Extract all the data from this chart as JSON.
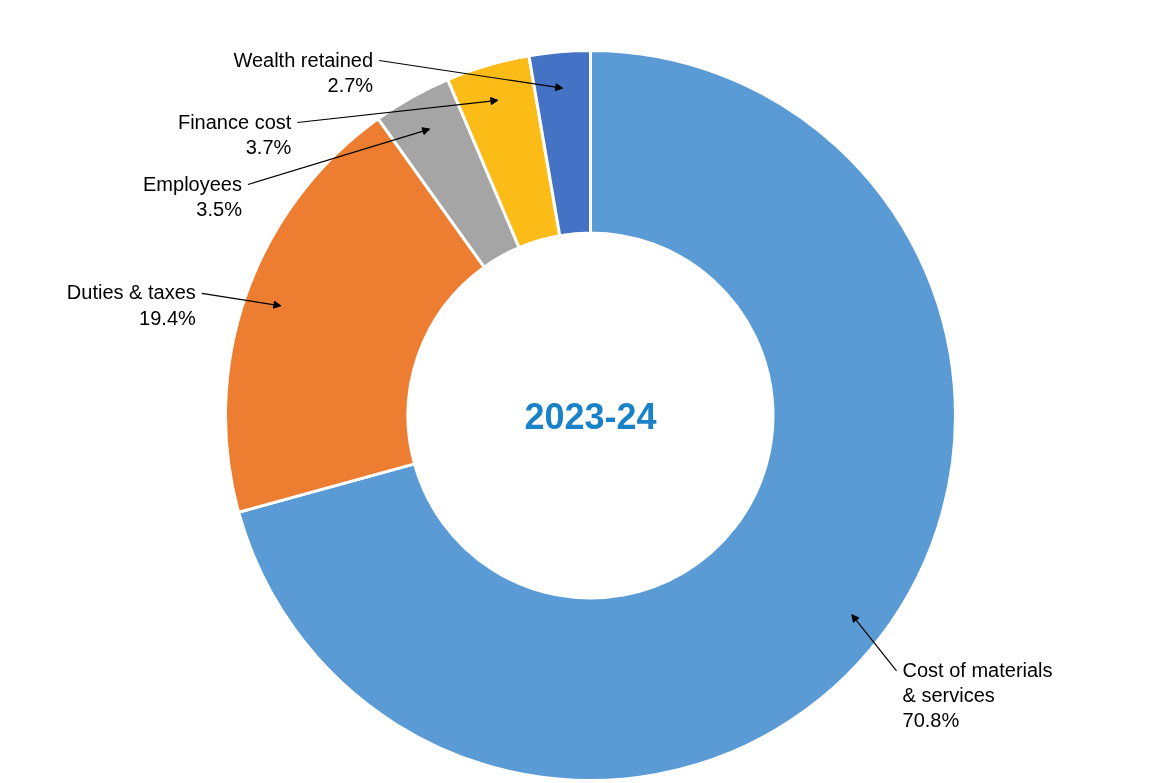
{
  "chart_data": {
    "type": "donut",
    "title": "2023-24",
    "categories": [
      "Cost of materials & services",
      "Duties & taxes",
      "Employees",
      "Finance cost",
      "Wealth retained"
    ],
    "values": [
      70.8,
      19.4,
      3.5,
      3.7,
      2.7
    ],
    "value_labels": [
      "70.8%",
      "19.4%",
      "3.5%",
      "3.7%",
      "2.7%"
    ],
    "colors": [
      "#5b9bd5",
      "#ed7d31",
      "#a5a5a5",
      "#fbbc18",
      "#4472c4"
    ],
    "data_labels": true
  }
}
